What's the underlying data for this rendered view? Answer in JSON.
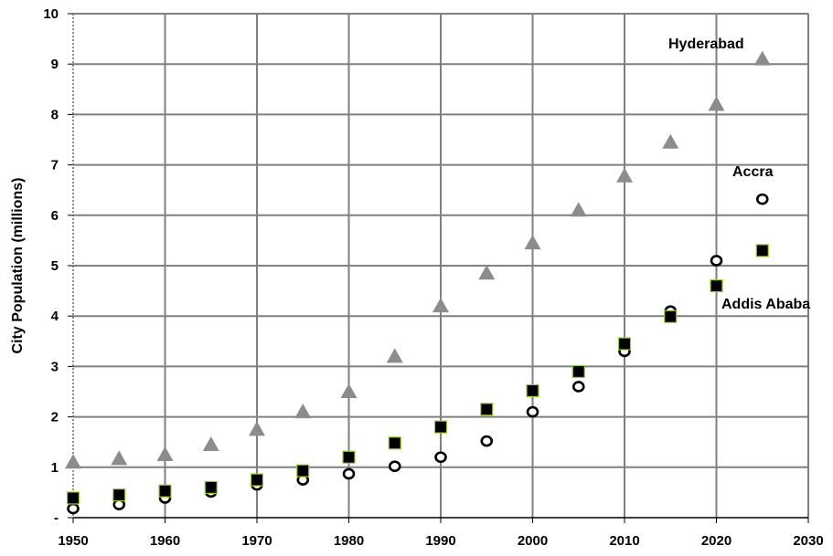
{
  "chart_data": {
    "type": "scatter",
    "title": "",
    "xlabel": "",
    "ylabel": "City Population (millions)",
    "xlim": [
      1950,
      2030
    ],
    "ylim": [
      0,
      10
    ],
    "x_ticks": [
      "1950",
      "1960",
      "1970",
      "1980",
      "1990",
      "2000",
      "2010",
      "2020",
      "2030"
    ],
    "y_ticks": [
      "-",
      "1",
      "2",
      "3",
      "4",
      "5",
      "6",
      "7",
      "8",
      "9",
      "10"
    ],
    "grid": true,
    "legend": "none",
    "series": [
      {
        "name": "Hyderabad",
        "marker": "triangle",
        "color": "#8c8c8c",
        "x": [
          1950,
          1955,
          1960,
          1965,
          1970,
          1975,
          1980,
          1985,
          1990,
          1995,
          2000,
          2005,
          2010,
          2015,
          2020,
          2025
        ],
        "y": [
          1.1,
          1.17,
          1.25,
          1.45,
          1.75,
          2.1,
          2.5,
          3.2,
          4.2,
          4.85,
          5.45,
          6.1,
          6.78,
          7.45,
          8.2,
          9.1
        ]
      },
      {
        "name": "Accra",
        "marker": "circle-open",
        "color": "#000000",
        "x": [
          1950,
          1955,
          1960,
          1965,
          1970,
          1975,
          1980,
          1985,
          1990,
          1995,
          2000,
          2005,
          2010,
          2015,
          2020,
          2025
        ],
        "y": [
          0.18,
          0.26,
          0.39,
          0.51,
          0.65,
          0.75,
          0.87,
          1.02,
          1.2,
          1.52,
          2.1,
          2.6,
          3.3,
          4.1,
          5.1,
          6.32
        ]
      },
      {
        "name": "Addis Ababa",
        "marker": "square",
        "color": "#000000",
        "x": [
          1950,
          1955,
          1960,
          1965,
          1970,
          1975,
          1980,
          1985,
          1990,
          1995,
          2000,
          2005,
          2010,
          2015,
          2020,
          2025
        ],
        "y": [
          0.39,
          0.45,
          0.53,
          0.6,
          0.75,
          0.93,
          1.2,
          1.48,
          1.8,
          2.15,
          2.52,
          2.9,
          3.45,
          3.99,
          4.6,
          5.3
        ]
      }
    ],
    "annotations": [
      "Hyderabad",
      "Accra",
      "Addis Ababa"
    ]
  }
}
